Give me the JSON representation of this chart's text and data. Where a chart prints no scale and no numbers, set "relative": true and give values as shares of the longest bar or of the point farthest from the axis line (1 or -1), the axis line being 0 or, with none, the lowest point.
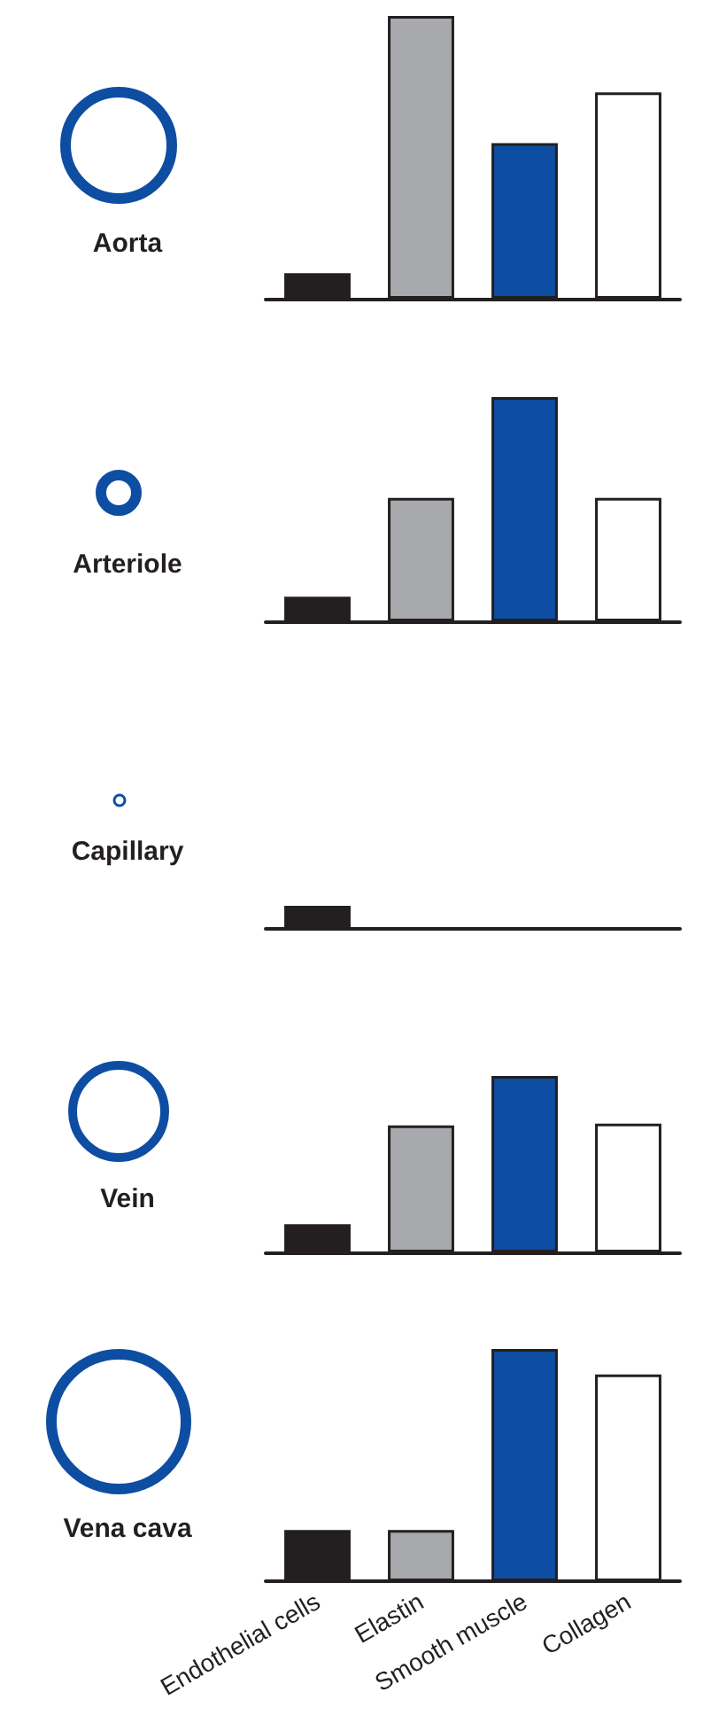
{
  "chart_data": [
    {
      "type": "bar",
      "title": "Aorta",
      "categories": [
        null,
        null,
        null,
        null
      ],
      "colors": [
        "#231f20",
        "#a7a9ac",
        "#0d4ea2",
        "#ffffff"
      ],
      "values": [
        0.09,
        1,
        0.55,
        0.73
      ],
      "relative": true
    },
    {
      "type": "bar",
      "title": "Arteriole",
      "categories": [
        null,
        null,
        null,
        null
      ],
      "colors": [
        "#231f20",
        "#a7a9ac",
        "#0d4ea2",
        "#ffffff"
      ],
      "values": [
        0.11,
        0.55,
        1,
        0.55
      ],
      "relative": true
    },
    {
      "type": "bar",
      "title": "Capillary",
      "categories": [
        null,
        null,
        null,
        null
      ],
      "colors": [
        "#231f20",
        "#a7a9ac",
        "#0d4ea2",
        "#ffffff"
      ],
      "values": [
        1,
        null,
        null,
        null
      ],
      "relative": true
    },
    {
      "type": "bar",
      "title": "Vein",
      "categories": [
        null,
        null,
        null,
        null
      ],
      "colors": [
        "#231f20",
        "#a7a9ac",
        "#0d4ea2",
        "#ffffff"
      ],
      "values": [
        0.16,
        0.72,
        1,
        0.73
      ],
      "relative": true
    },
    {
      "type": "bar",
      "title": "Vena cava",
      "categories": [
        "Endothelial cells",
        "Elastin",
        "Smooth muscle",
        "Collagen"
      ],
      "colors": [
        "#231f20",
        "#a7a9ac",
        "#0d4ea2",
        "#ffffff"
      ],
      "values": [
        0.22,
        0.22,
        1,
        0.89
      ],
      "relative": true
    }
  ]
}
